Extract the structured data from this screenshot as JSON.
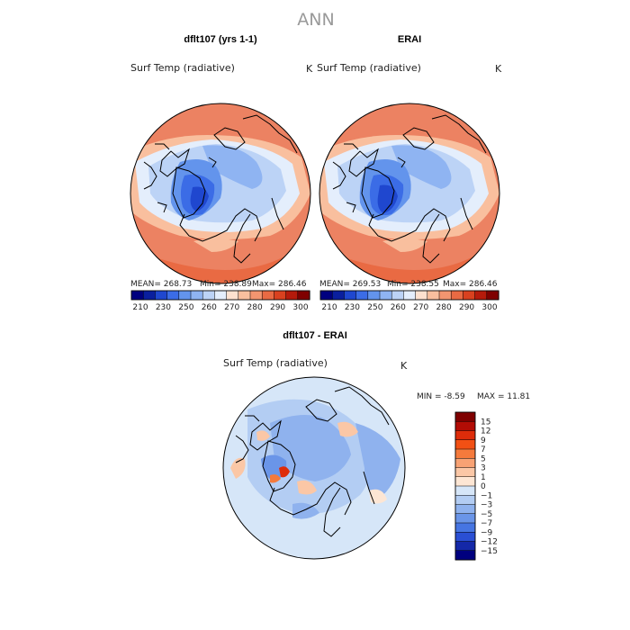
{
  "title": "ANN",
  "chart_data": [
    {
      "type": "heatmap",
      "projection": "polar-stereographic-north",
      "title": "dflt107 (yrs 1-1)",
      "variable": "Surf Temp (radiative)",
      "units": "K",
      "stats": {
        "mean": "MEAN= 268.73",
        "min": "Min= 238.89",
        "max": "Max= 286.46"
      },
      "legend": {
        "orientation": "horizontal",
        "levels": [
          210,
          230,
          250,
          260,
          270,
          280,
          290,
          300
        ],
        "tick_labels": [
          "210",
          "230",
          "250",
          "260",
          "270",
          "280",
          "290",
          "300"
        ]
      }
    },
    {
      "type": "heatmap",
      "projection": "polar-stereographic-north",
      "title": "ERAI",
      "variable": "Surf Temp (radiative)",
      "units": "K",
      "stats": {
        "mean": "MEAN= 269.53",
        "min": "Min= 238.55",
        "max": "Max= 286.46"
      },
      "legend": {
        "orientation": "horizontal",
        "levels": [
          210,
          230,
          250,
          260,
          270,
          280,
          290,
          300
        ],
        "tick_labels": [
          "210",
          "230",
          "250",
          "260",
          "270",
          "280",
          "290",
          "300"
        ]
      }
    },
    {
      "type": "heatmap",
      "projection": "polar-stereographic-north",
      "title": "dflt107 - ERAI",
      "variable": "Surf Temp (radiative)",
      "units": "K",
      "stats": {
        "min": "MIN =   -8.59",
        "max": "MAX =   11.81"
      },
      "legend": {
        "orientation": "vertical",
        "levels": [
          15,
          12,
          9,
          7,
          5,
          3,
          1,
          0,
          -1,
          -3,
          -5,
          -7,
          -9,
          -12,
          -15
        ],
        "tick_labels": [
          "15",
          "12",
          "9",
          "7",
          "5",
          "3",
          "1",
          "0",
          "−1",
          "−3",
          "−5",
          "−7",
          "−9",
          "−12",
          "−15"
        ]
      }
    }
  ],
  "colors": {
    "abs_scale": [
      "#00007f",
      "#0a1f9e",
      "#1f47cf",
      "#3b6ce6",
      "#6394ec",
      "#8fb4f2",
      "#bcd3f6",
      "#e4eefc",
      "#fde1cf",
      "#f9bf9e",
      "#f29570",
      "#e96a43",
      "#d9411f",
      "#b51a0b",
      "#7f0000"
    ],
    "diff_scale": [
      "#7f0000",
      "#b30c05",
      "#de2c0a",
      "#f25014",
      "#f57a3c",
      "#f8a274",
      "#fbc7a6",
      "#fde6d4",
      "#d6e6f8",
      "#b3cdf3",
      "#8fb2ee",
      "#6a95e8",
      "#4675e2",
      "#2a4fd4",
      "#1428a8",
      "#00007f"
    ]
  }
}
